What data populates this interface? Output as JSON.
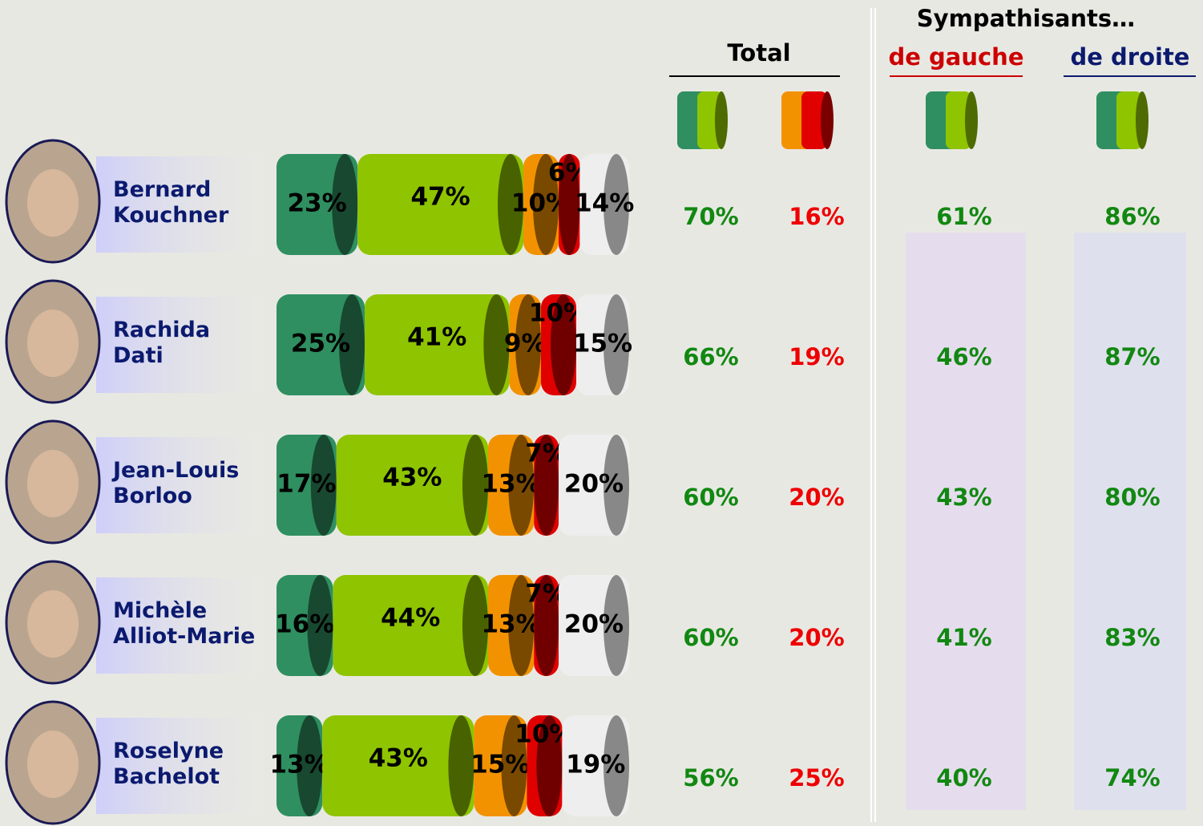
{
  "chart_data": {
    "type": "bar",
    "orientation": "horizontal",
    "stacked": true,
    "categories": [
      "Bernard Kouchner",
      "Rachida Dati",
      "Jean-Louis Borloo",
      "Michèle Alliot-Marie",
      "Roselyne Bachelot"
    ],
    "xlim": [
      0,
      100
    ],
    "series": [
      {
        "color": "#2f8f60",
        "values": [
          23,
          25,
          17,
          16,
          13
        ],
        "value_labels": [
          "23%",
          "25%",
          "17%",
          "16%",
          "13%"
        ]
      },
      {
        "color": "#8fc400",
        "values": [
          47,
          41,
          43,
          44,
          43
        ],
        "value_labels": [
          "47%",
          "41%",
          "43%",
          "44%",
          "43%"
        ]
      },
      {
        "color": "#f39200",
        "values": [
          10,
          9,
          13,
          13,
          15
        ],
        "value_labels": [
          "10%",
          "9%",
          "13%",
          "13%",
          "15%"
        ]
      },
      {
        "color": "#e00000",
        "values": [
          6,
          10,
          7,
          7,
          10
        ],
        "value_labels": [
          "6%",
          "10%",
          "7%",
          "7%",
          "10%"
        ]
      },
      {
        "color": "#eeeeee",
        "values": [
          14,
          15,
          20,
          20,
          19
        ],
        "value_labels": [
          "14%",
          "15%",
          "20%",
          "20%",
          "19%"
        ]
      }
    ]
  },
  "table": {
    "total": "Total",
    "sympathisants": "Sympathisants…",
    "gauche": "de gauche",
    "droite": "de droite",
    "rows": [
      [
        "70%",
        "16%",
        "61%",
        "86%"
      ],
      [
        "66%",
        "19%",
        "46%",
        "87%"
      ],
      [
        "60%",
        "20%",
        "43%",
        "80%"
      ],
      [
        "60%",
        "20%",
        "41%",
        "83%"
      ],
      [
        "56%",
        "25%",
        "40%",
        "74%"
      ]
    ]
  }
}
